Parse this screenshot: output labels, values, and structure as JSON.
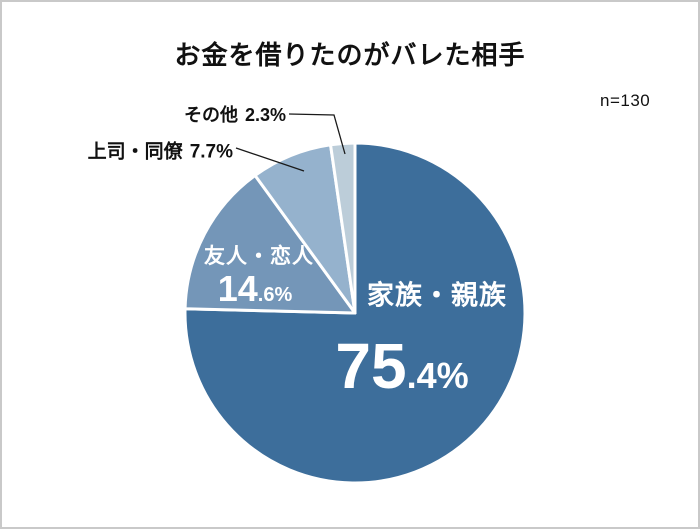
{
  "page": {
    "title": "お金を借りたのがバレた相手",
    "sample_size_label": "n=130"
  },
  "chart_data": {
    "type": "pie",
    "title": "お金を借りたのがバレた相手",
    "sample_size": "n=130",
    "direction": "clockwise",
    "start_angle_deg": 0,
    "total": 100,
    "legend_position": "none",
    "segments": [
      {
        "label": "家族・親族",
        "value": 75.4,
        "display": "75.4%",
        "color": "#3d6e9b",
        "label_placement": "inside",
        "text_color": "#ffffff"
      },
      {
        "label": "友人・恋人",
        "value": 14.6,
        "display": "14.6%",
        "color": "#7496b8",
        "label_placement": "inside",
        "text_color": "#ffffff"
      },
      {
        "label": "上司・同僚",
        "value": 7.7,
        "display": "7.7%",
        "color": "#95b2cd",
        "label_placement": "outside-callout",
        "text_color": "#111111"
      },
      {
        "label": "その他",
        "value": 2.3,
        "display": "2.3%",
        "color": "#bccdd9",
        "label_placement": "outside-callout",
        "text_color": "#111111"
      }
    ],
    "slice_border_color": "#ffffff"
  }
}
